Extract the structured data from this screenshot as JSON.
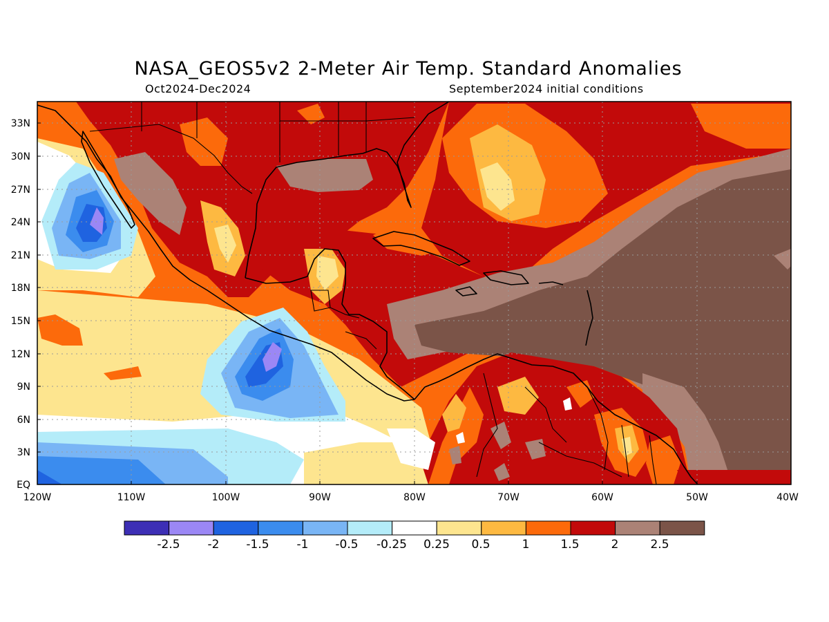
{
  "header": {
    "title": "NASA_GEOS5v2 2-Meter Air Temp. Standard Anomalies",
    "period": "Oct2024-Dec2024",
    "initial_conditions": "September2024 initial conditions"
  },
  "map": {
    "projection": "lat-lon",
    "lon_range": [
      -120,
      -40
    ],
    "lat_range": [
      0,
      35
    ],
    "lon_ticks": [
      "120W",
      "110W",
      "100W",
      "90W",
      "80W",
      "70W",
      "60W",
      "50W",
      "40W"
    ],
    "lat_ticks": [
      "EQ",
      "3N",
      "6N",
      "9N",
      "12N",
      "15N",
      "18N",
      "21N",
      "24N",
      "27N",
      "30N",
      "33N"
    ],
    "grid": "dotted"
  },
  "colorbar": {
    "labels": [
      "-2.5",
      "-2",
      "-1.5",
      "-1",
      "-0.5",
      "-0.25",
      "0.25",
      "0.5",
      "1",
      "1.5",
      "2",
      "2.5"
    ],
    "colors": [
      "#3d2fb5",
      "#9b87f5",
      "#1f63e0",
      "#3b8cee",
      "#79b5f5",
      "#b4ecf9",
      "#ffffff",
      "#fde58f",
      "#fdb941",
      "#fc6a0b",
      "#c20a0a",
      "#ab8276",
      "#7b5448"
    ]
  }
}
